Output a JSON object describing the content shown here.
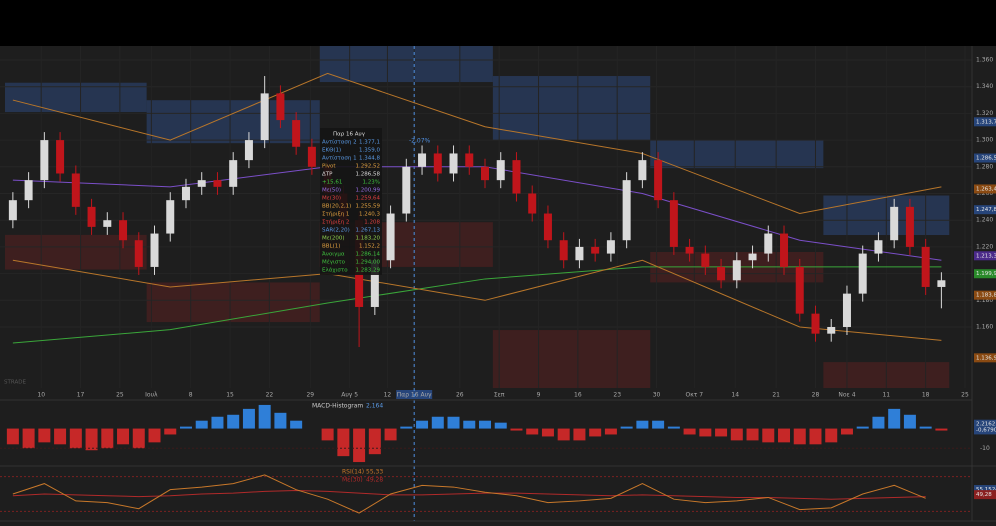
{
  "chart_data": {
    "type": "candlestick",
    "xlim": [
      0,
      61
    ],
    "ylim": [
      1.1143,
      1.3705
    ],
    "yticks": [
      {
        "value": 1.36,
        "label": "1.360"
      },
      {
        "value": 1.34,
        "label": "1.340"
      },
      {
        "value": 1.32,
        "label": "1.320"
      },
      {
        "value": 1.3,
        "label": "1.300"
      },
      {
        "value": 1.28,
        "label": "1.280"
      },
      {
        "value": 1.26,
        "label": "1.260"
      },
      {
        "value": 1.24,
        "label": "1.240"
      },
      {
        "value": 1.22,
        "label": "1.220"
      },
      {
        "value": 1.2,
        "label": "1.200"
      },
      {
        "value": 1.18,
        "label": "1.180"
      },
      {
        "value": 1.16,
        "label": "1.160"
      }
    ],
    "xticks": [
      {
        "value": 2.3,
        "label": "10"
      },
      {
        "value": 4.8,
        "label": "17"
      },
      {
        "value": 7.3,
        "label": "25"
      },
      {
        "value": 9.3,
        "label": "Ιουλ"
      },
      {
        "value": 11.8,
        "label": "8"
      },
      {
        "value": 14.3,
        "label": "15"
      },
      {
        "value": 16.8,
        "label": "22"
      },
      {
        "value": 19.4,
        "label": "29"
      },
      {
        "value": 21.9,
        "label": "Αυγ 5"
      },
      {
        "value": 24.3,
        "label": "12"
      },
      {
        "value": 26.0,
        "label": "Παρ 16 Αυγ",
        "highlight": true
      },
      {
        "value": 28.9,
        "label": "26"
      },
      {
        "value": 31.4,
        "label": "Σεπ"
      },
      {
        "value": 33.9,
        "label": "9"
      },
      {
        "value": 36.4,
        "label": "16"
      },
      {
        "value": 38.9,
        "label": "23"
      },
      {
        "value": 41.4,
        "label": "30"
      },
      {
        "value": 43.8,
        "label": "Οκτ 7"
      },
      {
        "value": 46.4,
        "label": "14"
      },
      {
        "value": 49.0,
        "label": "21"
      },
      {
        "value": 51.5,
        "label": "28"
      },
      {
        "value": 53.5,
        "label": "Νοε 4"
      },
      {
        "value": 56.0,
        "label": "11"
      },
      {
        "value": 58.5,
        "label": "18"
      },
      {
        "value": 61.0,
        "label": "25"
      }
    ],
    "up_color": "#d9d9d9",
    "down_color": "#c0151b",
    "open": [
      1.24,
      1.255,
      1.27,
      1.3,
      1.275,
      1.25,
      1.235,
      1.24,
      1.225,
      1.205,
      1.23,
      1.255,
      1.265,
      1.27,
      1.265,
      1.285,
      1.3,
      1.335,
      1.315,
      1.295,
      1.28,
      1.26,
      1.24,
      1.175,
      1.21,
      1.245,
      1.28,
      1.29,
      1.275,
      1.29,
      1.28,
      1.27,
      1.285,
      1.26,
      1.245,
      1.225,
      1.21,
      1.22,
      1.215,
      1.225,
      1.27,
      1.285,
      1.255,
      1.22,
      1.215,
      1.205,
      1.195,
      1.21,
      1.215,
      1.23,
      1.205,
      1.17,
      1.155,
      1.16,
      1.185,
      1.215,
      1.225,
      1.25,
      1.22,
      1.19
    ],
    "high": [
      1.261,
      1.276,
      1.306,
      1.306,
      1.281,
      1.256,
      1.246,
      1.246,
      1.231,
      1.236,
      1.261,
      1.271,
      1.276,
      1.276,
      1.291,
      1.306,
      1.348,
      1.341,
      1.321,
      1.301,
      1.286,
      1.266,
      1.246,
      1.216,
      1.251,
      1.286,
      1.296,
      1.296,
      1.296,
      1.296,
      1.286,
      1.291,
      1.291,
      1.266,
      1.251,
      1.231,
      1.226,
      1.226,
      1.231,
      1.276,
      1.291,
      1.291,
      1.261,
      1.226,
      1.221,
      1.211,
      1.216,
      1.221,
      1.236,
      1.236,
      1.211,
      1.176,
      1.166,
      1.191,
      1.221,
      1.231,
      1.256,
      1.256,
      1.226,
      1.201
    ],
    "low": [
      1.234,
      1.249,
      1.264,
      1.269,
      1.244,
      1.229,
      1.229,
      1.219,
      1.199,
      1.199,
      1.224,
      1.249,
      1.259,
      1.259,
      1.259,
      1.279,
      1.294,
      1.309,
      1.289,
      1.274,
      1.254,
      1.234,
      1.145,
      1.169,
      1.204,
      1.239,
      1.274,
      1.269,
      1.269,
      1.274,
      1.264,
      1.264,
      1.254,
      1.239,
      1.219,
      1.204,
      1.204,
      1.209,
      1.209,
      1.219,
      1.264,
      1.249,
      1.214,
      1.209,
      1.199,
      1.189,
      1.189,
      1.204,
      1.209,
      1.199,
      1.164,
      1.149,
      1.149,
      1.154,
      1.179,
      1.209,
      1.219,
      1.214,
      1.184,
      1.174
    ],
    "close": [
      1.255,
      1.27,
      1.3,
      1.275,
      1.25,
      1.235,
      1.24,
      1.225,
      1.205,
      1.23,
      1.255,
      1.265,
      1.27,
      1.265,
      1.285,
      1.3,
      1.335,
      1.315,
      1.295,
      1.28,
      1.26,
      1.24,
      1.175,
      1.21,
      1.245,
      1.28,
      1.29,
      1.275,
      1.29,
      1.28,
      1.27,
      1.285,
      1.26,
      1.245,
      1.225,
      1.21,
      1.22,
      1.215,
      1.225,
      1.27,
      1.285,
      1.255,
      1.22,
      1.215,
      1.205,
      1.195,
      1.21,
      1.215,
      1.23,
      1.205,
      1.17,
      1.155,
      1.16,
      1.185,
      1.215,
      1.225,
      1.25,
      1.22,
      1.19,
      1.195
    ],
    "zones": [
      {
        "from": 0,
        "to": 9,
        "low": 1.321,
        "high": 1.343,
        "color": "#2a3d63"
      },
      {
        "from": 0,
        "to": 9,
        "low": 1.203,
        "high": 1.229,
        "color": "#4a2020"
      },
      {
        "from": 9,
        "to": 20,
        "low": 1.2977,
        "high": 1.3299,
        "color": "#2a3d63"
      },
      {
        "from": 9,
        "to": 20,
        "low": 1.1637,
        "high": 1.1934,
        "color": "#4a2020"
      },
      {
        "from": 20,
        "to": 31,
        "low": 1.3435,
        "high": 1.3705,
        "color": "#2a3d63"
      },
      {
        "from": 20,
        "to": 31,
        "low": 1.205,
        "high": 1.2385,
        "color": "#4a2020"
      },
      {
        "from": 31,
        "to": 41,
        "low": 1.3,
        "high": 1.348,
        "color": "#2a3d63"
      },
      {
        "from": 31,
        "to": 41,
        "low": 1.1143,
        "high": 1.1577,
        "color": "#4a2020"
      },
      {
        "from": 41,
        "to": 52,
        "low": 1.279,
        "high": 1.3,
        "color": "#2a3d63"
      },
      {
        "from": 41,
        "to": 52,
        "low": 1.1934,
        "high": 1.2162,
        "color": "#4a2020"
      },
      {
        "from": 52,
        "to": 60,
        "low": 1.2289,
        "high": 1.2585,
        "color": "#2a3d63"
      },
      {
        "from": 52,
        "to": 60,
        "low": 1.1143,
        "high": 1.1337,
        "color": "#4a2020"
      }
    ],
    "lines": [
      {
        "color": "#3aa63a",
        "x": [
          0,
          10,
          20,
          30,
          40,
          50,
          59
        ],
        "values": [
          1.148,
          1.158,
          1.178,
          1.196,
          1.205,
          1.205,
          1.205
        ]
      },
      {
        "color": "#7b4fc9",
        "x": [
          0,
          10,
          20,
          30,
          40,
          50,
          59
        ],
        "values": [
          1.27,
          1.265,
          1.28,
          1.28,
          1.26,
          1.225,
          1.21
        ]
      },
      {
        "color": "#b8762a",
        "x": [
          0,
          10,
          20,
          30,
          40,
          50,
          59
        ],
        "values": [
          1.33,
          1.3,
          1.35,
          1.31,
          1.29,
          1.245,
          1.265
        ]
      },
      {
        "color": "#b8762a",
        "x": [
          0,
          10,
          20,
          30,
          40,
          50,
          59
        ],
        "values": [
          1.21,
          1.19,
          1.2,
          1.18,
          1.21,
          1.16,
          1.15
        ]
      }
    ],
    "badges": [
      {
        "value": 1.31371,
        "label": "1.313,71",
        "color": "#27457a"
      },
      {
        "value": 1.28658,
        "label": "1.286,58",
        "color": "#27457a"
      },
      {
        "value": 1.2634,
        "label": "1.263,4",
        "color": "#8a4a12"
      },
      {
        "value": 1.24787,
        "label": "1.247,87",
        "color": "#27457a"
      },
      {
        "value": 1.21335,
        "label": "1.213,35",
        "color": "#4b2a8a"
      },
      {
        "value": 1.1999,
        "label": "1.199,90",
        "color": "#2a8a2a"
      },
      {
        "value": 1.18385,
        "label": "1.183,85",
        "color": "#8a4a12"
      },
      {
        "value": 1.1369,
        "label": "1.136,9",
        "color": "#8a4a12"
      }
    ],
    "tooltip": {
      "date": "Παρ 16 Αυγ",
      "rows": [
        {
          "label": "Αντίσταση 2",
          "value": "1.377,1",
          "color": "#5a9ae6"
        },
        {
          "label": "ΕΚΘ(1)",
          "value": "1.359,0",
          "color": "#5a9ae6"
        },
        {
          "label": "Αντίσταση 1",
          "value": "1.344,8",
          "color": "#5a9ae6"
        },
        {
          "label": "Pivot",
          "value": "1.292,52",
          "color": "#e0a040"
        },
        {
          "label": "ΔΤΡ",
          "value": "1.286,58",
          "color": "#dddddd"
        },
        {
          "label": "+15,61",
          "value": "1,23%",
          "color": "#3fc23f"
        },
        {
          "label": "Με(50)",
          "value": "1.200,99",
          "color": "#9a6ee6"
        },
        {
          "label": "Με(30)",
          "value": "1.259,64",
          "color": "#e04040"
        },
        {
          "label": "BB(20,2,1)",
          "value": "1.255,59",
          "color": "#e0a040"
        },
        {
          "label": "Στήριξη 1",
          "value": "1.240,3",
          "color": "#e0a040"
        },
        {
          "label": "Στήριξη 2",
          "value": "1.208",
          "color": "#e04040"
        },
        {
          "label": "SAR(2,20)",
          "value": "1.267,13",
          "color": "#5a9ae6"
        },
        {
          "label": "Με(200)",
          "value": "1.183,20",
          "color": "#8fd14f"
        },
        {
          "label": "BBL(1)",
          "value": "1.152,2",
          "color": "#e0a040"
        },
        {
          "label": "Άνοιγμα",
          "value": "1.286,14",
          "color": "#3fc23f"
        },
        {
          "label": "Μέγιστο",
          "value": "1.294,00",
          "color": "#3fc23f"
        },
        {
          "label": "Ελάχιστο",
          "value": "1.283,29",
          "color": "#3fc23f"
        }
      ]
    },
    "annotation": "-2,07%",
    "watermark": "STRADE",
    "macd": {
      "title": "MACD-Histogram",
      "value_label": "2,164",
      "ylim": [
        -18.5,
        14
      ],
      "yticks": [
        -10
      ],
      "up_color": "#2f7fd8",
      "down_color": "#c62828",
      "values": [
        -8,
        -10,
        -7,
        -8,
        -10,
        -11,
        -10,
        -8,
        -10,
        -7,
        -3,
        1,
        4,
        6,
        7,
        10,
        12,
        8,
        4,
        0,
        -6,
        -14,
        -17,
        -13,
        -6,
        1,
        4,
        6,
        6,
        4,
        4,
        3,
        -1,
        -3,
        -4,
        -6,
        -6,
        -4,
        -3,
        1,
        4,
        4,
        1,
        -3,
        -4,
        -4,
        -6,
        -6,
        -7,
        -7,
        -8,
        -8,
        -7,
        -3,
        1,
        6,
        10,
        7,
        1,
        -1
      ],
      "badges": [
        {
          "value": 2.2162,
          "label": "2,2162",
          "color": "#27457a"
        },
        {
          "value": -0.679,
          "label": "-0,6790",
          "color": "#27457a"
        }
      ]
    },
    "rsi": {
      "title": "RSI(14)",
      "value_label": "55,33",
      "color": "#c8782a",
      "ylim": [
        20,
        80
      ],
      "levels": [
        30,
        70
      ],
      "x": [
        0,
        2,
        4,
        6,
        8,
        10,
        12,
        14,
        16,
        18,
        20,
        22,
        24,
        26,
        28,
        30,
        32,
        34,
        36,
        38,
        40,
        42,
        44,
        46,
        48,
        50,
        52,
        54,
        56,
        58
      ],
      "values": [
        50,
        62,
        42,
        40,
        33,
        55,
        58,
        62,
        72,
        55,
        44,
        28,
        50,
        60,
        58,
        52,
        48,
        40,
        42,
        45,
        62,
        44,
        40,
        42,
        46,
        32,
        34,
        50,
        60,
        45
      ],
      "ma": {
        "title": "Με(30)",
        "value_label": "49,28",
        "color": "#b02a2a",
        "values": [
          48,
          50,
          49,
          48,
          47,
          48,
          50,
          51,
          53,
          54,
          53,
          51,
          49,
          49,
          50,
          51,
          51,
          50,
          49,
          48,
          49,
          48,
          47,
          46,
          46,
          45,
          44,
          45,
          46,
          47
        ]
      },
      "badges": [
        {
          "value": 55.1524,
          "label": "55,1524",
          "color": "#27457a"
        },
        {
          "value": 49.28,
          "label": "49,28",
          "color": "#8a2020"
        }
      ]
    }
  }
}
